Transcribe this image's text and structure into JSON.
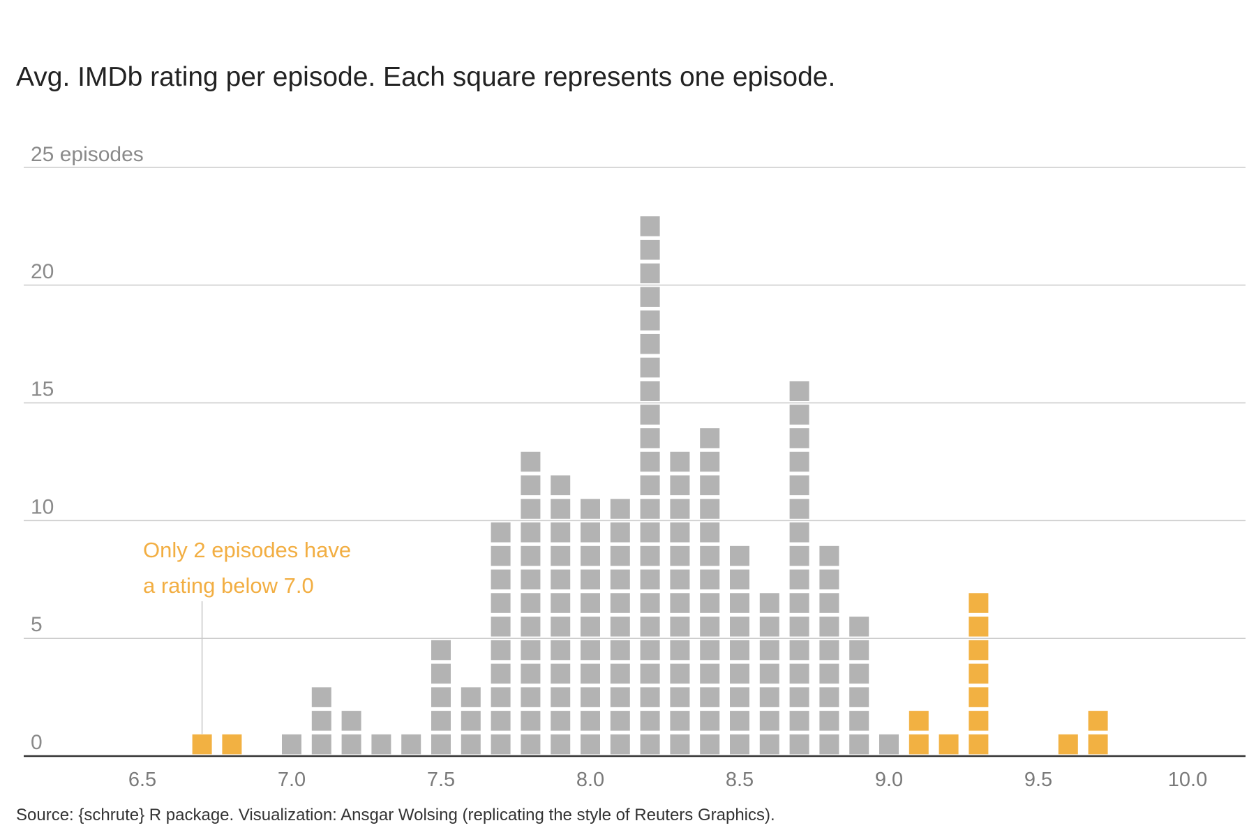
{
  "chart_data": {
    "type": "bar",
    "title": "Avg. IMDb rating per episode. Each square represents one episode.",
    "y_axis_top_label": "25 episodes",
    "y_ticks": [
      0,
      5,
      10,
      15,
      20
    ],
    "ylim": [
      0,
      25
    ],
    "x_ticks": [
      "6.5",
      "7.0",
      "7.5",
      "8.0",
      "8.5",
      "9.0",
      "9.5",
      "10.0"
    ],
    "xlim": [
      6.2,
      10.2
    ],
    "grid": true,
    "colors": {
      "normal": "#b3b3b3",
      "highlight": "#f2b142",
      "grid": "#cccccc",
      "axis": "#333333"
    },
    "series": [
      {
        "values": [
          {
            "x": 6.7,
            "y": 1,
            "highlight": true
          },
          {
            "x": 6.8,
            "y": 1,
            "highlight": true
          },
          {
            "x": 7.0,
            "y": 1,
            "highlight": false
          },
          {
            "x": 7.1,
            "y": 3,
            "highlight": false
          },
          {
            "x": 7.2,
            "y": 2,
            "highlight": false
          },
          {
            "x": 7.3,
            "y": 1,
            "highlight": false
          },
          {
            "x": 7.4,
            "y": 1,
            "highlight": false
          },
          {
            "x": 7.5,
            "y": 5,
            "highlight": false
          },
          {
            "x": 7.6,
            "y": 3,
            "highlight": false
          },
          {
            "x": 7.7,
            "y": 10,
            "highlight": false
          },
          {
            "x": 7.8,
            "y": 13,
            "highlight": false
          },
          {
            "x": 7.9,
            "y": 12,
            "highlight": false
          },
          {
            "x": 8.0,
            "y": 11,
            "highlight": false
          },
          {
            "x": 8.1,
            "y": 11,
            "highlight": false
          },
          {
            "x": 8.2,
            "y": 23,
            "highlight": false
          },
          {
            "x": 8.3,
            "y": 13,
            "highlight": false
          },
          {
            "x": 8.4,
            "y": 14,
            "highlight": false
          },
          {
            "x": 8.5,
            "y": 9,
            "highlight": false
          },
          {
            "x": 8.6,
            "y": 7,
            "highlight": false
          },
          {
            "x": 8.7,
            "y": 16,
            "highlight": false
          },
          {
            "x": 8.8,
            "y": 9,
            "highlight": false
          },
          {
            "x": 8.9,
            "y": 6,
            "highlight": false
          },
          {
            "x": 9.0,
            "y": 1,
            "highlight": false
          },
          {
            "x": 9.1,
            "y": 2,
            "highlight": true
          },
          {
            "x": 9.2,
            "y": 1,
            "highlight": true
          },
          {
            "x": 9.3,
            "y": 7,
            "highlight": true
          },
          {
            "x": 9.6,
            "y": 1,
            "highlight": true
          },
          {
            "x": 9.7,
            "y": 2,
            "highlight": true
          }
        ]
      }
    ],
    "annotation": {
      "lines": [
        "Only 2 episodes have",
        "a rating below 7.0"
      ],
      "points_to_x": 6.7
    },
    "caption": "Source: {schrute} R package. Visualization: Ansgar Wolsing (replicating the style of Reuters Graphics)."
  }
}
